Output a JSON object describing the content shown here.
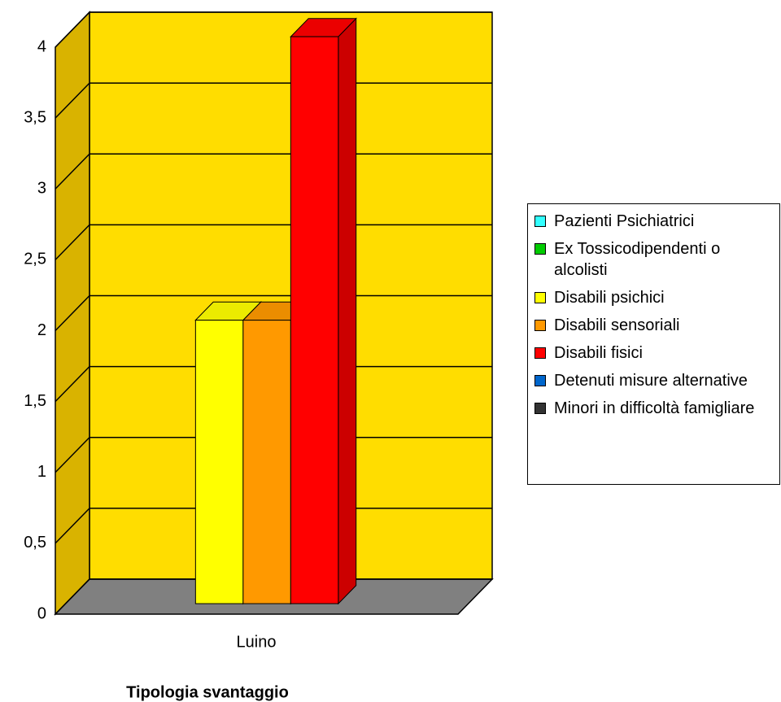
{
  "chart_data": {
    "type": "bar3d",
    "x_label": "Tipologia svantaggio",
    "categories": [
      "Luino"
    ],
    "series": [
      {
        "name": "Pazienti Psichiatrici",
        "color": "#33ffff",
        "values": [
          0
        ]
      },
      {
        "name": "Ex Tossicodipendenti o alcolisti",
        "color": "#00cc00",
        "values": [
          0
        ]
      },
      {
        "name": "Disabili psichici",
        "color": "#ffff00",
        "values": [
          2
        ]
      },
      {
        "name": "Disabili sensoriali",
        "color": "#ff9900",
        "values": [
          2
        ]
      },
      {
        "name": "Disabili fisici",
        "color": "#ff0000",
        "values": [
          4
        ]
      },
      {
        "name": "Detenuti misure alternative",
        "color": "#0066cc",
        "values": [
          0
        ]
      },
      {
        "name": "Minori in difficoltà famigliare",
        "color": "#333333",
        "values": [
          0
        ]
      }
    ],
    "ylim": [
      0,
      4
    ],
    "yticks": [
      0,
      {
        "value": 0.5,
        "label": "0,5"
      },
      1,
      {
        "value": 1.5,
        "label": "1,5"
      },
      2,
      {
        "value": 2.5,
        "label": "2,5"
      },
      3,
      {
        "value": 3.5,
        "label": "3,5"
      },
      4
    ],
    "grid": true
  }
}
